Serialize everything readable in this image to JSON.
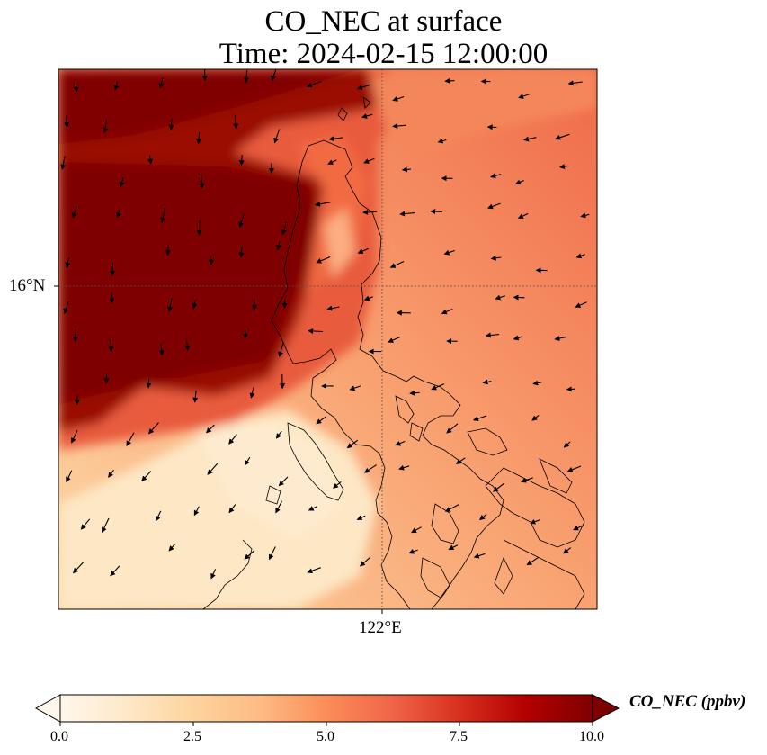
{
  "title_line1": "CO_NEC at surface",
  "title_line2": "Time: 2024-02-15 12:00:00",
  "axes": {
    "lat_tick_label": "16°N",
    "lon_tick_label": "122°E",
    "gridlines": "dotted"
  },
  "colorbar": {
    "label": "CO_NEC (ppbv)",
    "colormap": "OrRd",
    "extend": "both",
    "ticks": [
      "0.0",
      "2.5",
      "5.0",
      "7.5",
      "10.0"
    ],
    "range": [
      0,
      10
    ]
  },
  "colors": {
    "low": "#fff7ec",
    "mid": "#fc8d59",
    "high": "#7f0000"
  }
}
